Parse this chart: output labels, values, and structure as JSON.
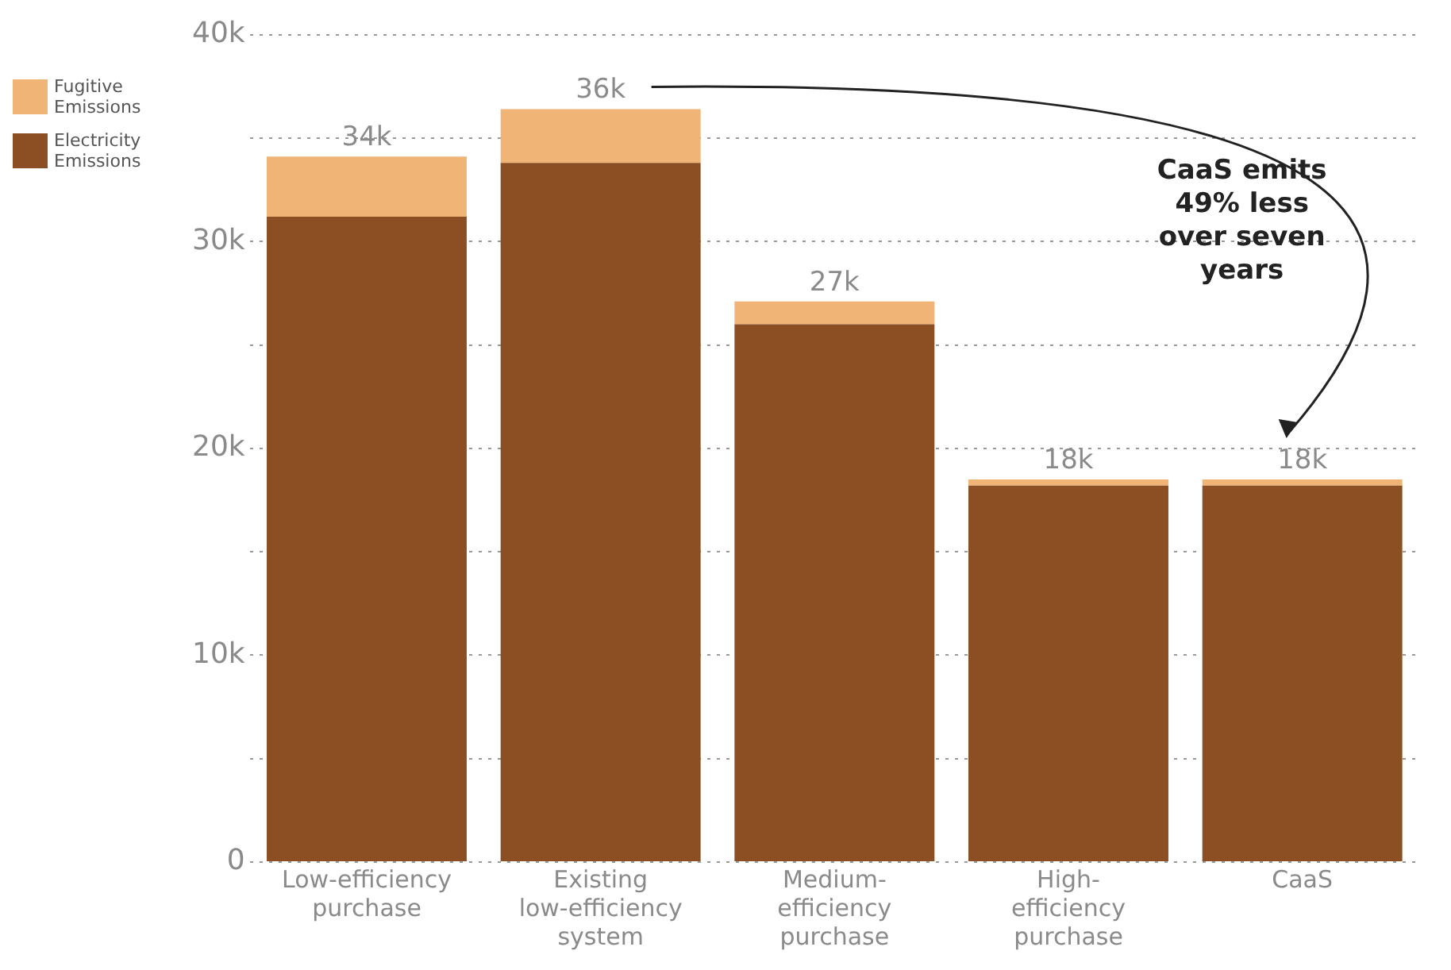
{
  "chart_data": {
    "type": "bar",
    "stacked": true,
    "categories": [
      "Low-efficiency purchase",
      "Existing low-efficiency system",
      "Medium-efficiency purchase",
      "High-efficiency purchase",
      "CaaS"
    ],
    "series": [
      {
        "name": "Electricity Emissions",
        "color": "#8b4f23",
        "values": [
          31200,
          33800,
          26000,
          18200,
          18200
        ]
      },
      {
        "name": "Fugitive Emissions",
        "color": "#f0b476",
        "values": [
          2900,
          2600,
          1100,
          300,
          300
        ]
      }
    ],
    "totals": [
      "34k",
      "36k",
      "27k",
      "18k",
      "18k"
    ],
    "ylim": [
      0,
      40000
    ],
    "yticks": [
      {
        "value": 0,
        "label": "0"
      },
      {
        "value": 5000,
        "label": null
      },
      {
        "value": 10000,
        "label": "10k"
      },
      {
        "value": 15000,
        "label": null
      },
      {
        "value": 20000,
        "label": "20k"
      },
      {
        "value": 25000,
        "label": null
      },
      {
        "value": 30000,
        "label": "30k"
      },
      {
        "value": 35000,
        "label": null
      },
      {
        "value": 40000,
        "label": "40k"
      }
    ],
    "grid": "y",
    "legend": "top left",
    "annotations": [
      "CaaS emits 49% less over seven years"
    ]
  }
}
